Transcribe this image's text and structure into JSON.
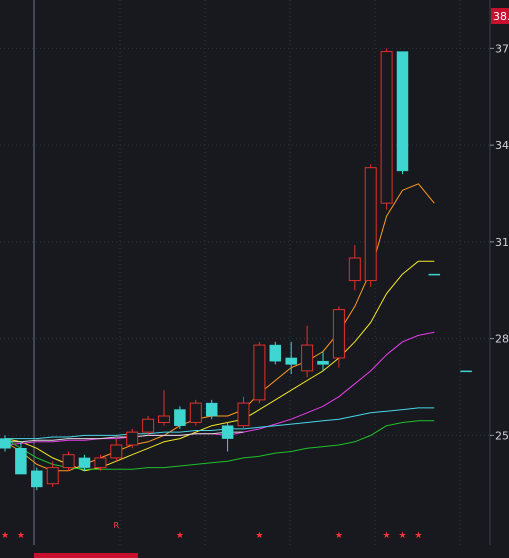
{
  "chart_data": {
    "type": "candlestick",
    "title": "",
    "xlabel": "",
    "ylabel": "",
    "ylim": [
      21.6,
      38.5
    ],
    "grid": true,
    "price_badge": "38.",
    "y_ticks": [
      {
        "value": 37.0,
        "label": "37"
      },
      {
        "value": 34.0,
        "label": "34"
      },
      {
        "value": 31.0,
        "label": "31"
      },
      {
        "value": 28.0,
        "label": "28"
      },
      {
        "value": 25.0,
        "label": "25"
      }
    ],
    "candles": [
      {
        "o": 24.9,
        "h": 25.0,
        "l": 24.5,
        "c": 24.6,
        "dir": "down"
      },
      {
        "o": 24.6,
        "h": 24.8,
        "l": 23.8,
        "c": 23.8,
        "dir": "down"
      },
      {
        "o": 23.9,
        "h": 24.0,
        "l": 23.3,
        "c": 23.4,
        "dir": "down"
      },
      {
        "o": 23.5,
        "h": 24.2,
        "l": 23.4,
        "c": 24.0,
        "dir": "up"
      },
      {
        "o": 24.0,
        "h": 24.5,
        "l": 23.9,
        "c": 24.4,
        "dir": "up"
      },
      {
        "o": 24.3,
        "h": 24.4,
        "l": 23.9,
        "c": 24.0,
        "dir": "down"
      },
      {
        "o": 24.0,
        "h": 24.4,
        "l": 23.9,
        "c": 24.3,
        "dir": "up"
      },
      {
        "o": 24.3,
        "h": 24.9,
        "l": 24.2,
        "c": 24.7,
        "dir": "up"
      },
      {
        "o": 24.7,
        "h": 25.2,
        "l": 24.6,
        "c": 25.1,
        "dir": "up"
      },
      {
        "o": 25.1,
        "h": 25.6,
        "l": 25.0,
        "c": 25.5,
        "dir": "up"
      },
      {
        "o": 25.4,
        "h": 26.4,
        "l": 25.3,
        "c": 25.6,
        "dir": "up"
      },
      {
        "o": 25.8,
        "h": 25.9,
        "l": 25.2,
        "c": 25.3,
        "dir": "down"
      },
      {
        "o": 25.4,
        "h": 26.1,
        "l": 25.3,
        "c": 26.0,
        "dir": "up"
      },
      {
        "o": 26.0,
        "h": 26.1,
        "l": 25.5,
        "c": 25.6,
        "dir": "down"
      },
      {
        "o": 25.3,
        "h": 25.4,
        "l": 24.5,
        "c": 24.9,
        "dir": "down"
      },
      {
        "o": 25.3,
        "h": 26.2,
        "l": 25.2,
        "c": 26.0,
        "dir": "up"
      },
      {
        "o": 26.1,
        "h": 27.9,
        "l": 26.0,
        "c": 27.8,
        "dir": "up"
      },
      {
        "o": 27.8,
        "h": 27.9,
        "l": 27.2,
        "c": 27.3,
        "dir": "down"
      },
      {
        "o": 27.4,
        "h": 27.9,
        "l": 26.9,
        "c": 27.2,
        "dir": "down"
      },
      {
        "o": 27.0,
        "h": 28.4,
        "l": 26.8,
        "c": 27.8,
        "dir": "up"
      },
      {
        "o": 27.3,
        "h": 27.6,
        "l": 27.0,
        "c": 27.2,
        "dir": "down"
      },
      {
        "o": 27.4,
        "h": 29.0,
        "l": 27.1,
        "c": 28.9,
        "dir": "up"
      },
      {
        "o": 29.8,
        "h": 30.9,
        "l": 29.5,
        "c": 30.5,
        "dir": "up"
      },
      {
        "o": 29.8,
        "h": 33.4,
        "l": 29.6,
        "c": 33.3,
        "dir": "up"
      },
      {
        "o": 32.2,
        "h": 37.0,
        "l": 32.0,
        "c": 36.9,
        "dir": "up"
      },
      {
        "o": 36.9,
        "h": 36.9,
        "l": 33.1,
        "c": 33.2,
        "dir": "down"
      },
      null,
      {
        "o": 30.0,
        "h": 30.0,
        "l": 30.0,
        "c": 30.0,
        "dir": "down"
      },
      null,
      {
        "o": 27.0,
        "h": 27.0,
        "l": 27.0,
        "c": 27.0,
        "dir": "down"
      }
    ],
    "series": [
      {
        "color": "#ff9a1f",
        "values": [
          24.8,
          24.5,
          24.1,
          23.9,
          23.9,
          24.1,
          24.3,
          24.5,
          24.7,
          24.8,
          25.0,
          25.3,
          25.5,
          25.6,
          25.6,
          25.8,
          26.3,
          26.7,
          27.1,
          27.3,
          27.6,
          28.2,
          29.0,
          30.1,
          31.8,
          32.6,
          32.8,
          32.2
        ]
      },
      {
        "color": "#f2e626",
        "values": [
          24.9,
          24.8,
          24.6,
          24.3,
          24.1,
          23.9,
          24.0,
          24.2,
          24.4,
          24.6,
          24.8,
          24.9,
          25.1,
          25.3,
          25.4,
          25.5,
          25.8,
          26.1,
          26.4,
          26.7,
          27.0,
          27.4,
          27.9,
          28.5,
          29.4,
          30.0,
          30.4,
          30.4
        ]
      },
      {
        "color": "#e83ee8",
        "values": [
          24.7,
          24.75,
          24.8,
          24.8,
          24.85,
          24.85,
          24.9,
          24.9,
          24.95,
          25.0,
          25.0,
          25.0,
          25.05,
          25.05,
          25.0,
          25.1,
          25.2,
          25.35,
          25.5,
          25.7,
          25.9,
          26.2,
          26.6,
          27.0,
          27.5,
          27.9,
          28.1,
          28.2
        ]
      },
      {
        "color": "#48d6e8",
        "values": [
          24.9,
          24.9,
          24.9,
          24.95,
          24.95,
          25.0,
          25.0,
          25.0,
          25.05,
          25.05,
          25.1,
          25.1,
          25.15,
          25.15,
          25.2,
          25.2,
          25.25,
          25.3,
          25.35,
          25.4,
          25.45,
          25.5,
          25.6,
          25.7,
          25.75,
          25.8,
          25.85,
          25.85
        ]
      },
      {
        "color": "#d8d8d8",
        "values": [
          24.8,
          24.8,
          24.85,
          24.85,
          24.9,
          24.9,
          24.9,
          24.95,
          24.95,
          25.0,
          25.0,
          25.0,
          25.05,
          25.05,
          25.1,
          25.1
        ]
      },
      {
        "color": "#20c02a",
        "values": [
          24.9,
          24.6,
          24.3,
          24.1,
          24.0,
          23.95,
          23.95,
          23.95,
          23.95,
          24.0,
          24.0,
          24.05,
          24.1,
          24.15,
          24.2,
          24.3,
          24.35,
          24.45,
          24.5,
          24.6,
          24.65,
          24.7,
          24.8,
          25.0,
          25.3,
          25.4,
          25.45,
          25.45
        ]
      }
    ],
    "markers": [
      {
        "index": 0,
        "text": "★",
        "color": "#ff3333"
      },
      {
        "index": 1,
        "text": "★",
        "color": "#ff3333"
      },
      {
        "index": 7,
        "text": "R",
        "color": "#ff4444"
      },
      {
        "index": 11,
        "text": "★",
        "color": "#ff3333"
      },
      {
        "index": 16,
        "text": "★",
        "color": "#ff3333"
      },
      {
        "index": 21,
        "text": "★",
        "color": "#ff3333"
      },
      {
        "index": 24,
        "text": "★",
        "color": "#ff3333"
      },
      {
        "index": 25,
        "text": "★",
        "color": "#ff3333"
      },
      {
        "index": 26,
        "text": "★",
        "color": "#ff3333"
      }
    ],
    "colors": {
      "up": "#e0312b",
      "down": "#3fd6d2",
      "grid": "#2e3542",
      "background": "#17191f",
      "badge": "#c8102e",
      "tick_text": "#cfd3da"
    }
  }
}
